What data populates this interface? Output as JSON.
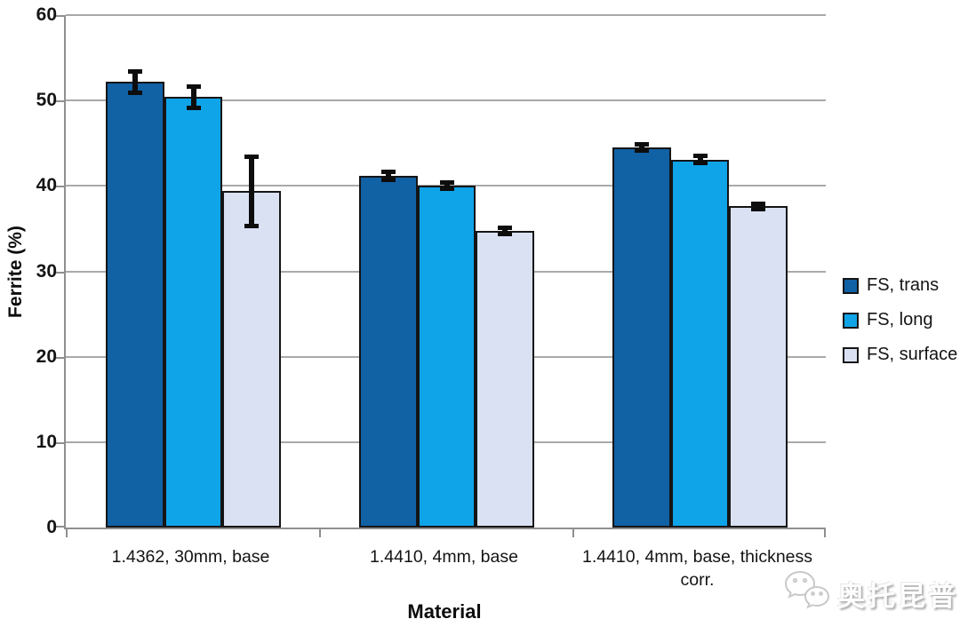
{
  "chart_data": {
    "type": "bar",
    "title": "",
    "xlabel": "Material",
    "ylabel": "Ferrite (%)",
    "ylim": [
      0,
      60
    ],
    "y_ticks": [
      0,
      10,
      20,
      30,
      40,
      50,
      60
    ],
    "grid": true,
    "legend_position": "right",
    "categories": [
      "1.4362, 30mm, base",
      "1.4410, 4mm, base",
      "1.4410, 4mm, base, thickness corr."
    ],
    "series": [
      {
        "name": "FS, trans",
        "color": "#1161A5",
        "values": [
          52.2,
          41.2,
          44.5
        ],
        "errors": [
          1.3,
          0.5,
          0.4
        ]
      },
      {
        "name": "FS, long",
        "color": "#0FA4E8",
        "values": [
          50.4,
          40.0,
          43.1
        ],
        "errors": [
          1.3,
          0.4,
          0.5
        ]
      },
      {
        "name": "FS, surface",
        "color": "#D9E1F3",
        "values": [
          39.4,
          34.7,
          37.6
        ],
        "errors": [
          4.1,
          0.4,
          0.4
        ]
      }
    ],
    "bar_outline_color": "#151515",
    "error_bar_color": "#0d0d0d",
    "gridline_color": "#a9a9a9",
    "axis_line_color": "#8f8f8f"
  },
  "watermark": {
    "text": "奥托昆普",
    "icon": "wechat-icon"
  }
}
